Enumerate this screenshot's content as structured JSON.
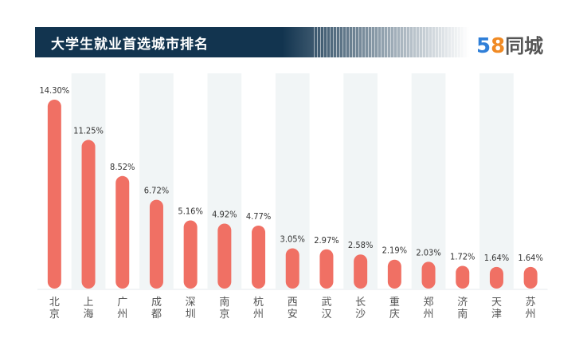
{
  "header": {
    "title": "大学生就业首选城市排名",
    "logo": {
      "digit5": "5",
      "digit8": "8",
      "text": "同城"
    }
  },
  "colors": {
    "bar": "#f07064",
    "banner": "#12344f",
    "shade": "#f1f5f6"
  },
  "chart_data": {
    "type": "bar",
    "title": "大学生就业首选城市排名",
    "categories": [
      "北京",
      "上海",
      "广州",
      "成都",
      "深圳",
      "南京",
      "杭州",
      "西安",
      "武汉",
      "长沙",
      "重庆",
      "郑州",
      "济南",
      "天津",
      "苏州"
    ],
    "values": [
      14.3,
      11.25,
      8.52,
      6.72,
      5.16,
      4.92,
      4.77,
      3.05,
      2.97,
      2.58,
      2.19,
      2.03,
      1.72,
      1.64,
      1.64
    ],
    "labels": [
      "14.30%",
      "11.25%",
      "8.52%",
      "6.72%",
      "5.16%",
      "4.92%",
      "4.77%",
      "3.05%",
      "2.97%",
      "2.58%",
      "2.19%",
      "2.03%",
      "1.72%",
      "1.64%",
      "1.64%"
    ],
    "ylim": [
      0,
      14.3
    ],
    "xlabel": "",
    "ylabel": "",
    "grid": false
  }
}
